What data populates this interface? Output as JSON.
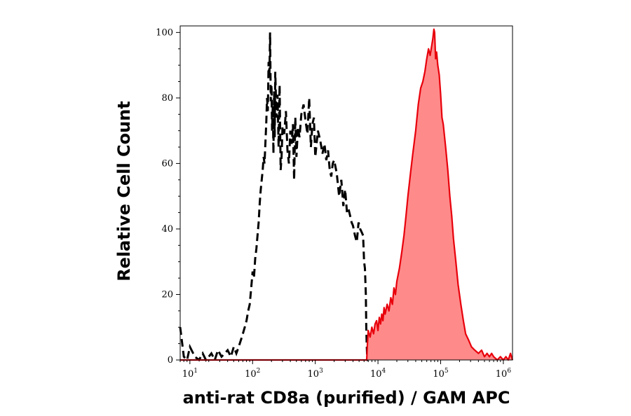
{
  "chart_data": {
    "type": "area",
    "xlabel": "anti-rat CD8a (purified) / GAM APC",
    "ylabel": "Relative Cell Count",
    "x_scale": "log",
    "xlim": [
      7,
      1400000
    ],
    "ylim": [
      0,
      102
    ],
    "x_ticks": [
      {
        "base": "10",
        "exp": "1",
        "value": 10
      },
      {
        "base": "10",
        "exp": "2",
        "value": 100
      },
      {
        "base": "10",
        "exp": "3",
        "value": 1000
      },
      {
        "base": "10",
        "exp": "4",
        "value": 10000
      },
      {
        "base": "10",
        "exp": "5",
        "value": 100000
      },
      {
        "base": "10",
        "exp": "6",
        "value": 1000000
      }
    ],
    "y_ticks": [
      "0",
      "20",
      "40",
      "60",
      "80",
      "100"
    ],
    "y_tick_values": [
      0,
      20,
      40,
      60,
      80,
      100
    ],
    "grid": false,
    "legend": "none",
    "series": [
      {
        "style": "dashed-outline",
        "color": "#000000",
        "x": [
          7,
          8,
          9,
          10,
          12,
          14,
          16,
          18,
          20,
          22,
          25,
          28,
          32,
          36,
          40,
          45,
          50,
          55,
          60,
          65,
          70,
          75,
          80,
          85,
          90,
          95,
          100,
          105,
          110,
          115,
          120,
          125,
          130,
          135,
          140,
          145,
          150,
          155,
          160,
          165,
          170,
          175,
          180,
          185,
          190,
          195,
          200,
          205,
          210,
          215,
          220,
          225,
          230,
          240,
          250,
          260,
          270,
          280,
          290,
          300,
          320,
          340,
          360,
          380,
          400,
          420,
          440,
          460,
          480,
          500,
          530,
          560,
          600,
          650,
          700,
          750,
          800,
          850,
          900,
          950,
          1000,
          1100,
          1200,
          1300,
          1400,
          1500,
          1600,
          1700,
          1800,
          1900,
          2000,
          2200,
          2400,
          2600,
          2800,
          3000,
          3200,
          3400,
          3600,
          3800,
          4000,
          4300,
          4600,
          4900,
          5200,
          5500,
          5800,
          6000,
          6200,
          6400,
          6500,
          6600,
          6700,
          6800,
          7000
        ],
        "y": [
          10,
          1,
          0,
          4,
          1,
          0,
          2,
          0,
          1,
          2,
          0,
          3,
          1,
          2,
          3,
          1,
          4,
          2,
          4,
          6,
          8,
          10,
          12,
          15,
          17,
          22,
          27,
          25,
          31,
          34,
          38,
          42,
          48,
          52,
          55,
          58,
          62,
          60,
          66,
          72,
          80,
          76,
          91,
          86,
          100,
          79,
          84,
          70,
          78,
          63,
          82,
          68,
          88,
          74,
          81,
          65,
          84,
          58,
          62,
          71,
          69,
          76,
          64,
          60,
          70,
          66,
          72,
          55,
          74,
          62,
          71,
          68,
          75,
          78,
          73,
          69,
          80,
          65,
          72,
          74,
          62,
          70,
          67,
          63,
          66,
          61,
          64,
          58,
          56,
          60,
          61,
          57,
          50,
          55,
          47,
          52,
          45,
          46,
          44,
          42,
          41,
          38,
          36,
          42,
          40,
          39,
          38,
          30,
          28,
          20,
          10,
          5,
          2,
          0,
          0
        ]
      },
      {
        "style": "filled",
        "color": "#e8000b",
        "fill": "#ff8a8a",
        "x": [
          7,
          100,
          1000,
          5000,
          6600,
          6800,
          7000,
          7500,
          8000,
          8500,
          9000,
          9500,
          10000,
          10500,
          11000,
          11500,
          12000,
          12500,
          13000,
          14000,
          15000,
          16000,
          17000,
          18000,
          19000,
          20000,
          22000,
          24000,
          26000,
          28000,
          30000,
          33000,
          36000,
          40000,
          44000,
          48000,
          52000,
          56000,
          60000,
          64000,
          68000,
          72000,
          75000,
          78000,
          80000,
          83000,
          86000,
          90000,
          95000,
          100000,
          105000,
          110000,
          120000,
          130000,
          140000,
          150000,
          160000,
          175000,
          190000,
          210000,
          230000,
          250000,
          280000,
          310000,
          350000,
          400000,
          450000,
          500000,
          550000,
          600000,
          650000,
          700000,
          800000,
          900000,
          1000000,
          1100000,
          1200000,
          1300000,
          1400000
        ],
        "y": [
          0,
          0,
          0,
          0,
          0,
          5,
          9,
          7,
          10,
          8,
          11,
          12,
          9,
          13,
          11,
          14,
          12,
          16,
          14,
          17,
          15,
          19,
          17,
          22,
          20,
          24,
          28,
          33,
          38,
          44,
          50,
          57,
          63,
          70,
          78,
          83,
          85,
          88,
          92,
          95,
          93,
          96,
          98,
          101,
          100,
          92,
          94,
          90,
          87,
          81,
          74,
          72,
          65,
          58,
          50,
          44,
          37,
          30,
          23,
          17,
          12,
          8,
          6,
          4,
          3,
          2,
          3,
          1,
          2,
          1,
          2,
          1,
          0,
          1,
          0,
          1,
          0,
          2,
          0
        ]
      }
    ]
  },
  "axes": {
    "xlabel": "anti-rat CD8a (purified) / GAM APC",
    "ylabel": "Relative Cell Count"
  }
}
